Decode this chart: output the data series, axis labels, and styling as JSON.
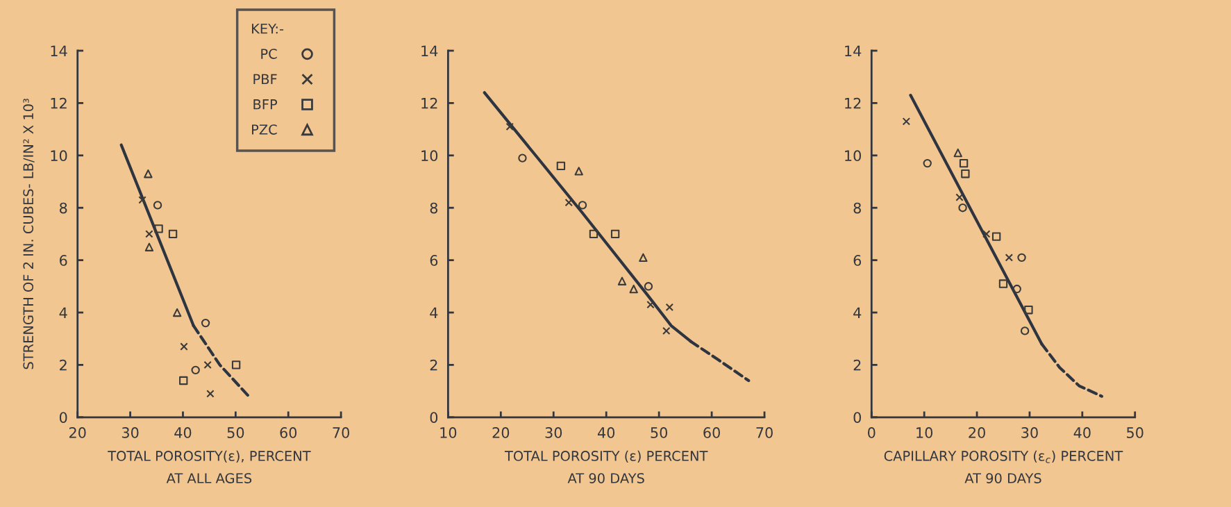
{
  "chart_data": [
    {
      "type": "scatter",
      "xlabel": "TOTAL POROSITY(ε), PERCENT\nAT ALL AGES",
      "ylabel": "STRENGTH OF 2 IN. CUBES- LB/IN² X 10³",
      "legend_title": "KEY:-",
      "legend": "top right",
      "xlim": [
        20,
        70
      ],
      "xticks": [
        20,
        30,
        40,
        50,
        60,
        70
      ],
      "ylim": [
        0,
        14
      ],
      "yticks": [
        0,
        2,
        4,
        6,
        8,
        10,
        12,
        14
      ],
      "grid": false,
      "series": [
        {
          "name": "PC",
          "marker": "circle",
          "color": "#3a3a3a",
          "x": [
            35.2,
            44.3,
            42.4
          ],
          "values": [
            8.1,
            3.6,
            1.8
          ]
        },
        {
          "name": "PBF",
          "marker": "cross",
          "color": "#3a3a3a",
          "x": [
            32.3,
            33.6,
            40.2,
            44.7,
            45.2
          ],
          "values": [
            8.3,
            7.0,
            2.7,
            2.0,
            0.9
          ]
        },
        {
          "name": "BFP",
          "marker": "square",
          "color": "#3a3a3a",
          "x": [
            35.4,
            38.1,
            40.1,
            50.1
          ],
          "values": [
            7.2,
            7.0,
            1.4,
            2.0
          ]
        },
        {
          "name": "PZC",
          "marker": "triangle",
          "color": "#3a3a3a",
          "x": [
            33.4,
            33.6,
            38.9
          ],
          "values": [
            9.3,
            6.5,
            4.0
          ]
        },
        {
          "type": "line",
          "line_style": "solid",
          "color": "#2f3540",
          "x": [
            28.3,
            42.0
          ],
          "values": [
            10.4,
            3.5
          ]
        },
        {
          "type": "line",
          "line_style": "dashed",
          "color": "#2f3540",
          "x": [
            42.0,
            47.0,
            52.5
          ],
          "values": [
            3.5,
            2.0,
            0.8
          ]
        }
      ]
    },
    {
      "type": "scatter",
      "xlabel": "TOTAL POROSITY (ε) PERCENT\nAT 90 DAYS",
      "xlim": [
        10,
        70
      ],
      "xticks": [
        10,
        20,
        30,
        40,
        50,
        60,
        70
      ],
      "ylim": [
        0,
        14
      ],
      "yticks": [
        0,
        2,
        4,
        6,
        8,
        10,
        12,
        14
      ],
      "grid": false,
      "series": [
        {
          "marker": "circle",
          "color": "#3a3a3a",
          "x": [
            24.1,
            35.5,
            48.0
          ],
          "values": [
            9.9,
            8.1,
            5.0
          ]
        },
        {
          "marker": "cross",
          "color": "#3a3a3a",
          "x": [
            21.7,
            32.9,
            48.4,
            52.0,
            51.4
          ],
          "values": [
            11.1,
            8.2,
            4.3,
            4.2,
            3.3
          ]
        },
        {
          "marker": "square",
          "color": "#3a3a3a",
          "x": [
            31.4,
            37.6,
            41.7
          ],
          "values": [
            9.6,
            7.0,
            7.0
          ]
        },
        {
          "marker": "triangle",
          "color": "#3a3a3a",
          "x": [
            34.8,
            47.0,
            43.0,
            45.2
          ],
          "values": [
            9.4,
            6.1,
            5.2,
            4.9
          ]
        },
        {
          "type": "line",
          "line_style": "solid",
          "color": "#2f3540",
          "x": [
            16.9,
            26.6,
            35.5,
            47.7,
            52.3,
            56.0
          ],
          "values": [
            12.4,
            10.0,
            7.8,
            4.7,
            3.5,
            2.9
          ]
        },
        {
          "type": "line",
          "line_style": "dashed",
          "color": "#2f3540",
          "x": [
            56.0,
            61.2,
            67.0
          ],
          "values": [
            2.9,
            2.2,
            1.4
          ]
        }
      ]
    },
    {
      "type": "scatter",
      "xlabel": "CAPILLARY POROSITY (ε$_{c}$) PERCENT\nAT 90 DAYS",
      "xlim": [
        0,
        50
      ],
      "xticks": [
        0,
        10,
        20,
        30,
        40,
        50
      ],
      "ylim": [
        0,
        14
      ],
      "yticks": [
        0,
        2,
        4,
        6,
        8,
        10,
        12,
        14
      ],
      "grid": false,
      "series": [
        {
          "marker": "circle",
          "color": "#3a3a3a",
          "x": [
            10.6,
            17.3,
            28.5,
            27.6,
            29.1
          ],
          "values": [
            9.7,
            8.0,
            6.1,
            4.9,
            3.3
          ]
        },
        {
          "marker": "cross",
          "color": "#3a3a3a",
          "x": [
            6.6,
            16.7,
            21.8,
            26.1
          ],
          "values": [
            11.3,
            8.4,
            7.0,
            6.1
          ]
        },
        {
          "marker": "square",
          "color": "#3a3a3a",
          "x": [
            17.5,
            17.8,
            23.7,
            25.0,
            29.8
          ],
          "values": [
            9.7,
            9.3,
            6.9,
            5.1,
            4.1
          ]
        },
        {
          "marker": "triangle",
          "color": "#3a3a3a",
          "x": [
            16.4
          ],
          "values": [
            10.1
          ]
        },
        {
          "type": "line",
          "line_style": "solid",
          "color": "#2f3540",
          "x": [
            7.4,
            32.3
          ],
          "values": [
            12.3,
            2.8
          ]
        },
        {
          "type": "line",
          "line_style": "dashed",
          "color": "#2f3540",
          "x": [
            32.3,
            35.7,
            39.4,
            43.7
          ],
          "values": [
            2.8,
            1.9,
            1.2,
            0.8
          ]
        }
      ]
    }
  ]
}
